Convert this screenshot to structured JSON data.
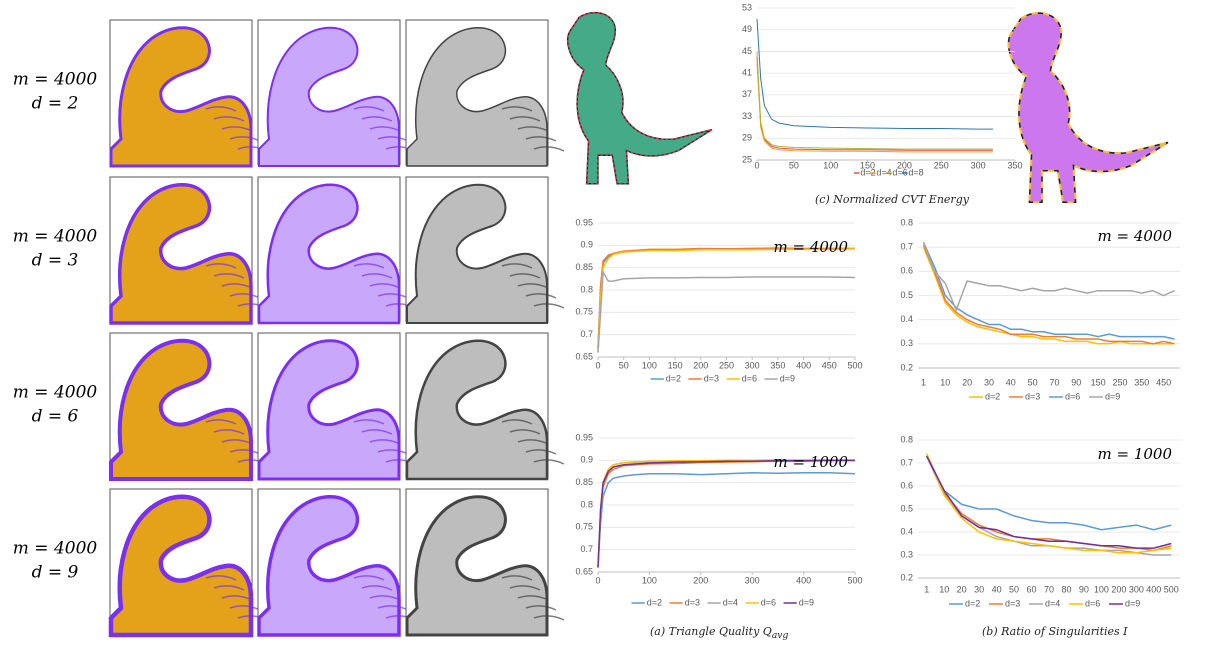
{
  "row_labels": [
    {
      "m": "m = 4000",
      "d": "d = 2"
    },
    {
      "m": "m = 4000",
      "d": "d = 3"
    },
    {
      "m": "m = 4000",
      "d": "d = 6"
    },
    {
      "m": "m = 4000",
      "d": "d = 9"
    }
  ],
  "captions": {
    "c": "(c) Normalized CVT Energy",
    "a": {
      "text": "(a) Triangle Quality ",
      "symbol": "Q",
      "subscript": "avg"
    },
    "b": "(b) Ratio of Singularities I"
  },
  "chart_data": [
    {
      "type": "line",
      "x": [
        0,
        5,
        10,
        20,
        30,
        50,
        100,
        150,
        200,
        250,
        300,
        320
      ],
      "xlim": [
        0,
        350
      ],
      "xticks": [
        0,
        50,
        100,
        150,
        200,
        250,
        300,
        350
      ],
      "ylim": [
        25,
        53
      ],
      "yticks": [
        25,
        29,
        33,
        37,
        41,
        45,
        49,
        53
      ],
      "grid": true,
      "series": [
        {
          "name": "d=2",
          "color": "#e0505a",
          "values": [
            44,
            31.5,
            28.8,
            27.5,
            27.2,
            27,
            26.9,
            26.9,
            26.8,
            26.8,
            26.8,
            26.8
          ]
        },
        {
          "name": "d=4",
          "color": "#f0a020",
          "values": [
            43,
            31,
            28.5,
            27.2,
            26.9,
            26.7,
            26.6,
            26.6,
            26.5,
            26.5,
            26.5,
            26.5
          ]
        },
        {
          "name": "d=6",
          "color": "#b8b030",
          "values": [
            45,
            32,
            29,
            27.8,
            27.5,
            27.3,
            27.2,
            27.1,
            27,
            27,
            27,
            27
          ]
        },
        {
          "name": "d=8",
          "color": "#2e75b6",
          "values": [
            51,
            40,
            35,
            32.5,
            31.8,
            31.3,
            31,
            30.9,
            30.8,
            30.8,
            30.7,
            30.7
          ]
        }
      ]
    },
    {
      "type": "line",
      "annotation": "m = 4000",
      "x": [
        0,
        5,
        10,
        20,
        30,
        50,
        100,
        150,
        200,
        250,
        300,
        350,
        400,
        450,
        500
      ],
      "xlim": [
        0,
        500
      ],
      "xticks": [
        0,
        50,
        100,
        150,
        200,
        250,
        300,
        350,
        400,
        450,
        500
      ],
      "ylim": [
        0.65,
        0.95
      ],
      "yticks": [
        0.65,
        0.7,
        0.75,
        0.8,
        0.85,
        0.9,
        0.95
      ],
      "grid": true,
      "series": [
        {
          "name": "d=2",
          "color": "#5b9bd5",
          "values": [
            0.67,
            0.8,
            0.86,
            0.875,
            0.88,
            0.885,
            0.89,
            0.89,
            0.892,
            0.892,
            0.893,
            0.893,
            0.893,
            0.893,
            0.893
          ]
        },
        {
          "name": "d=3",
          "color": "#ed7d31",
          "values": [
            0.67,
            0.81,
            0.865,
            0.878,
            0.882,
            0.887,
            0.891,
            0.891,
            0.893,
            0.892,
            0.893,
            0.894,
            0.893,
            0.893,
            0.893
          ]
        },
        {
          "name": "d=6",
          "color": "#ffc000",
          "values": [
            0.66,
            0.78,
            0.85,
            0.87,
            0.88,
            0.885,
            0.888,
            0.888,
            0.89,
            0.89,
            0.89,
            0.891,
            0.891,
            0.891,
            0.892
          ]
        },
        {
          "name": "d=9",
          "color": "#a5a5a5",
          "values": [
            0.66,
            0.75,
            0.84,
            0.82,
            0.82,
            0.825,
            0.827,
            0.827,
            0.828,
            0.828,
            0.829,
            0.829,
            0.829,
            0.829,
            0.828
          ]
        }
      ]
    },
    {
      "type": "line",
      "annotation": "m = 1000",
      "x": [
        0,
        5,
        10,
        20,
        30,
        50,
        75,
        100,
        150,
        200,
        250,
        300,
        350,
        400,
        450,
        500
      ],
      "xlim": [
        0,
        500
      ],
      "xticks": [
        0,
        100,
        200,
        300,
        400,
        500
      ],
      "ylim": [
        0.65,
        0.95
      ],
      "yticks": [
        0.65,
        0.7,
        0.75,
        0.8,
        0.85,
        0.9,
        0.95
      ],
      "grid": true,
      "series": [
        {
          "name": "d=2",
          "color": "#5b9bd5",
          "values": [
            0.66,
            0.76,
            0.82,
            0.85,
            0.86,
            0.865,
            0.868,
            0.87,
            0.87,
            0.868,
            0.87,
            0.872,
            0.871,
            0.872,
            0.872,
            0.87
          ]
        },
        {
          "name": "d=3",
          "color": "#ed7d31",
          "values": [
            0.66,
            0.78,
            0.84,
            0.87,
            0.88,
            0.888,
            0.89,
            0.892,
            0.893,
            0.895,
            0.896,
            0.897,
            0.898,
            0.898,
            0.899,
            0.899
          ]
        },
        {
          "name": "d=4",
          "color": "#a5a5a5",
          "values": [
            0.66,
            0.79,
            0.85,
            0.88,
            0.89,
            0.895,
            0.896,
            0.897,
            0.898,
            0.898,
            0.899,
            0.899,
            0.9,
            0.9,
            0.9,
            0.9
          ]
        },
        {
          "name": "d=6",
          "color": "#ffc000",
          "values": [
            0.66,
            0.79,
            0.85,
            0.88,
            0.89,
            0.895,
            0.897,
            0.898,
            0.899,
            0.899,
            0.9,
            0.9,
            0.901,
            0.901,
            0.9,
            0.9
          ]
        },
        {
          "name": "d=9",
          "color": "#7030a0",
          "values": [
            0.66,
            0.79,
            0.85,
            0.875,
            0.885,
            0.89,
            0.892,
            0.894,
            0.896,
            0.897,
            0.898,
            0.898,
            0.899,
            0.899,
            0.9,
            0.9
          ]
        }
      ]
    },
    {
      "type": "line",
      "annotation": "m = 4000",
      "categories": [
        1,
        null,
        10,
        null,
        20,
        null,
        30,
        null,
        40,
        null,
        50,
        null,
        70,
        null,
        90,
        null,
        150,
        null,
        250,
        null,
        350,
        null,
        450,
        null
      ],
      "ylim": [
        0.2,
        0.8
      ],
      "yticks": [
        0.2,
        0.3,
        0.4,
        0.5,
        0.6,
        0.7,
        0.8
      ],
      "grid": true,
      "series": [
        {
          "name": "d=2",
          "color": "#ffc000",
          "values": [
            0.7,
            0.59,
            0.47,
            0.42,
            0.39,
            0.37,
            0.36,
            0.35,
            0.34,
            0.33,
            0.33,
            0.32,
            0.32,
            0.31,
            0.31,
            0.31,
            0.3,
            0.3,
            0.31,
            0.3,
            0.3,
            0.3,
            0.3,
            0.3
          ]
        },
        {
          "name": "d=3",
          "color": "#ed7d31",
          "values": [
            0.71,
            0.6,
            0.48,
            0.43,
            0.4,
            0.38,
            0.37,
            0.36,
            0.34,
            0.34,
            0.34,
            0.33,
            0.33,
            0.33,
            0.32,
            0.32,
            0.32,
            0.31,
            0.31,
            0.31,
            0.31,
            0.3,
            0.31,
            0.3
          ]
        },
        {
          "name": "d=6",
          "color": "#5b9bd5",
          "values": [
            0.72,
            0.62,
            0.5,
            0.45,
            0.42,
            0.4,
            0.38,
            0.38,
            0.36,
            0.36,
            0.35,
            0.35,
            0.34,
            0.34,
            0.34,
            0.34,
            0.33,
            0.34,
            0.33,
            0.33,
            0.33,
            0.33,
            0.33,
            0.32
          ]
        },
        {
          "name": "d=9",
          "color": "#a5a5a5",
          "values": [
            0.72,
            0.6,
            0.55,
            0.44,
            0.56,
            0.55,
            0.54,
            0.54,
            0.53,
            0.52,
            0.53,
            0.52,
            0.52,
            0.53,
            0.52,
            0.51,
            0.52,
            0.52,
            0.52,
            0.52,
            0.51,
            0.52,
            0.5,
            0.52
          ]
        }
      ]
    },
    {
      "type": "line",
      "annotation": "m = 1000",
      "categories": [
        1,
        10,
        20,
        30,
        40,
        50,
        60,
        70,
        80,
        90,
        100,
        200,
        300,
        400,
        500
      ],
      "ylim": [
        0.2,
        0.8
      ],
      "yticks": [
        0.2,
        0.3,
        0.4,
        0.5,
        0.6,
        0.7,
        0.8
      ],
      "grid": true,
      "series": [
        {
          "name": "d=2",
          "color": "#5b9bd5",
          "values": [
            0.73,
            0.58,
            0.52,
            0.5,
            0.5,
            0.47,
            0.45,
            0.44,
            0.44,
            0.43,
            0.41,
            0.42,
            0.43,
            0.41,
            0.43
          ]
        },
        {
          "name": "d=3",
          "color": "#ed7d31",
          "values": [
            0.74,
            0.57,
            0.48,
            0.43,
            0.4,
            0.38,
            0.37,
            0.37,
            0.36,
            0.35,
            0.34,
            0.33,
            0.33,
            0.32,
            0.34
          ]
        },
        {
          "name": "d=4",
          "color": "#a5a5a5",
          "values": [
            0.73,
            0.56,
            0.47,
            0.42,
            0.38,
            0.36,
            0.34,
            0.34,
            0.33,
            0.33,
            0.32,
            0.32,
            0.31,
            0.3,
            0.3
          ]
        },
        {
          "name": "d=6",
          "color": "#ffc000",
          "values": [
            0.74,
            0.56,
            0.46,
            0.4,
            0.37,
            0.36,
            0.35,
            0.34,
            0.33,
            0.32,
            0.32,
            0.31,
            0.31,
            0.32,
            0.33
          ]
        },
        {
          "name": "d=9",
          "color": "#7030a0",
          "values": [
            0.73,
            0.58,
            0.47,
            0.42,
            0.41,
            0.38,
            0.37,
            0.36,
            0.36,
            0.35,
            0.34,
            0.34,
            0.33,
            0.33,
            0.35
          ]
        }
      ]
    }
  ]
}
